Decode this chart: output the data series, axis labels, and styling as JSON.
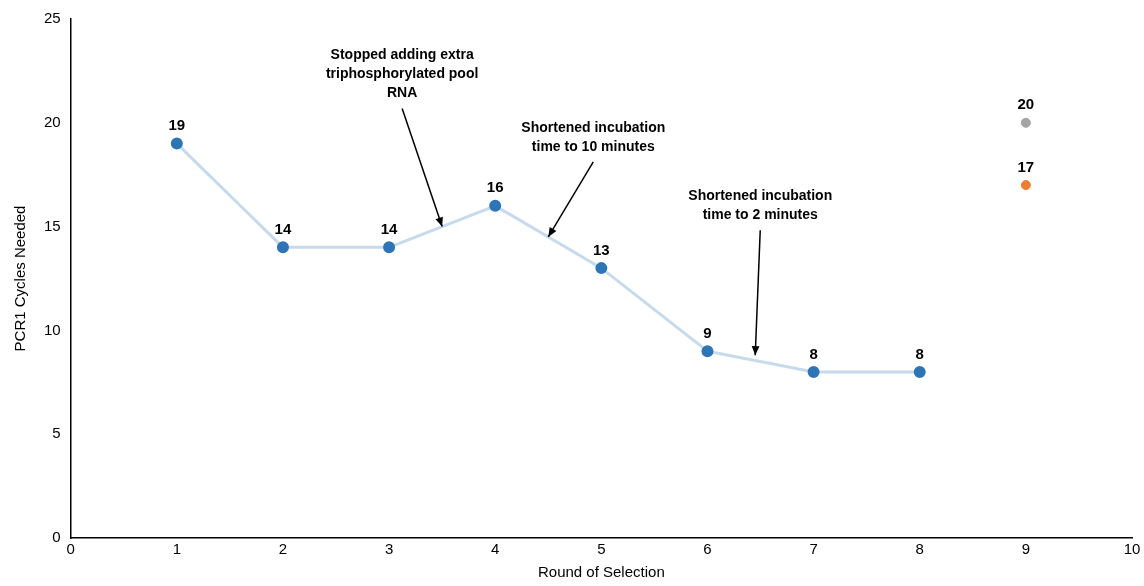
{
  "chart_data": {
    "type": "line",
    "xlabel": "Round of Selection",
    "ylabel": "PCR1 Cycles Needed",
    "xlim": [
      0,
      10
    ],
    "xticks": [
      0,
      1,
      2,
      3,
      4,
      5,
      6,
      7,
      8,
      9,
      10
    ],
    "ylim": [
      0,
      25
    ],
    "yticks": [
      0,
      5,
      10,
      15,
      20,
      25
    ],
    "grid": false,
    "legend": false,
    "marker": "circle",
    "data_labels": true,
    "series": [
      {
        "type": "line",
        "x": [
          1,
          2,
          3,
          4,
          5,
          6,
          7,
          8
        ],
        "values": [
          19,
          14,
          14,
          16,
          13,
          9,
          8,
          8
        ],
        "color": "#2e75b6"
      },
      {
        "type": "scatter",
        "x": [
          9
        ],
        "values": [
          20
        ],
        "color": "#a5a5a5"
      },
      {
        "type": "scatter",
        "x": [
          9
        ],
        "values": [
          17
        ],
        "color": "#ed7d31"
      }
    ],
    "annotations": [
      {
        "text": "Stopped adding extra triphosphorylated pool RNA",
        "x": 3.5,
        "y": 15
      },
      {
        "text": "Shortened incubation time to 10 minutes",
        "x": 4.5,
        "y": 14.5
      },
      {
        "text": "Shortened incubation time to 2 minutes",
        "x": 6.45,
        "y": 8.8
      }
    ]
  }
}
